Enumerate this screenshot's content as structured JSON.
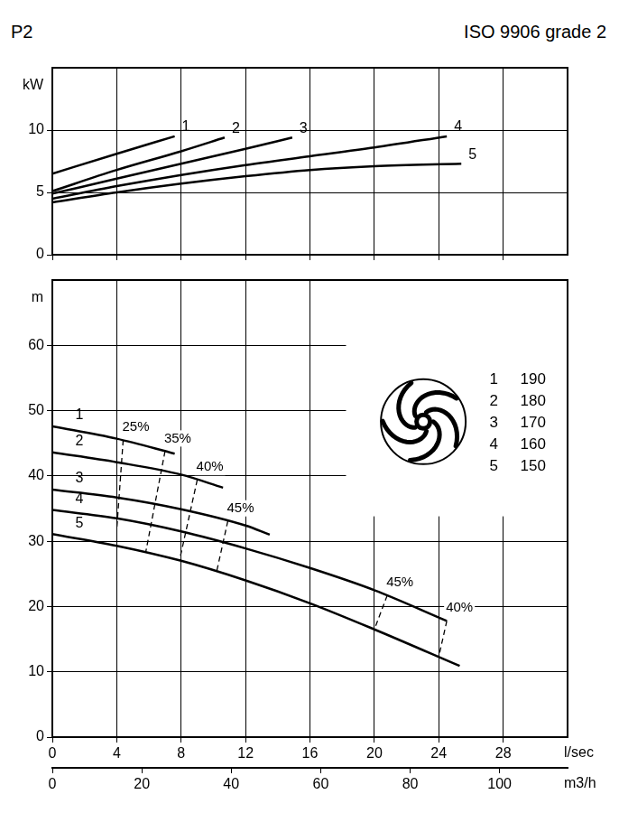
{
  "chart_data": [
    {
      "type": "line",
      "title": "P2",
      "subtitle": "ISO 9906 grade 2",
      "ylabel": "kW",
      "xlim": [
        0,
        32
      ],
      "xticks": [
        0,
        4,
        8,
        12,
        16,
        20,
        24,
        28
      ],
      "ylim": [
        0,
        15
      ],
      "yticks": [
        0,
        5,
        10
      ],
      "grid": true,
      "tick_labels": "y",
      "series": [
        {
          "name": "1",
          "color": "#000000",
          "x": [
            0,
            4,
            7.6
          ],
          "values": [
            6.5,
            8.1,
            9.5
          ]
        },
        {
          "name": "2",
          "color": "#000000",
          "x": [
            0,
            4,
            8,
            10.7
          ],
          "values": [
            5.1,
            6.8,
            8.3,
            9.4
          ]
        },
        {
          "name": "3",
          "color": "#000000",
          "x": [
            0,
            4,
            8,
            12,
            14.9
          ],
          "values": [
            4.9,
            6.1,
            7.3,
            8.5,
            9.4
          ]
        },
        {
          "name": "4",
          "color": "#000000",
          "x": [
            0,
            4,
            8,
            12,
            16,
            20,
            24.5
          ],
          "values": [
            4.5,
            5.5,
            6.4,
            7.2,
            7.9,
            8.6,
            9.5
          ]
        },
        {
          "name": "5",
          "color": "#000000",
          "x": [
            0,
            4,
            8,
            12,
            16,
            20,
            25.4
          ],
          "values": [
            4.2,
            5.0,
            5.7,
            6.3,
            6.8,
            7.1,
            7.3
          ]
        }
      ]
    },
    {
      "type": "line",
      "ylabel": "m",
      "xlabel": "l/sec",
      "x2label": "m3/h",
      "xlim": [
        0,
        32
      ],
      "xticks": [
        0,
        4,
        8,
        12,
        16,
        20,
        24,
        28
      ],
      "x2lim": [
        0,
        115.2
      ],
      "x2ticks": [
        0,
        20,
        40,
        60,
        80,
        100
      ],
      "ylim": [
        0,
        70
      ],
      "yticks": [
        0,
        10,
        20,
        30,
        40,
        50,
        60
      ],
      "grid": true,
      "series": [
        {
          "name": "1",
          "color": "#000000",
          "x": [
            0,
            4,
            7.6
          ],
          "values": [
            47.6,
            45.7,
            43.4
          ]
        },
        {
          "name": "2",
          "color": "#000000",
          "x": [
            0,
            4,
            8,
            10.6
          ],
          "values": [
            43.6,
            42.1,
            40.2,
            38.2
          ]
        },
        {
          "name": "3",
          "color": "#000000",
          "x": [
            0,
            4,
            8,
            12,
            13.5
          ],
          "values": [
            37.9,
            36.7,
            34.9,
            32.4,
            31.0
          ]
        },
        {
          "name": "4",
          "color": "#000000",
          "x": [
            0,
            4,
            8,
            12,
            16,
            20,
            24.5
          ],
          "values": [
            34.8,
            33.5,
            31.5,
            28.9,
            25.9,
            22.5,
            17.8
          ]
        },
        {
          "name": "5",
          "color": "#000000",
          "x": [
            0,
            4,
            8,
            12,
            16,
            20,
            25.3
          ],
          "values": [
            31.1,
            29.3,
            27.0,
            24.0,
            20.5,
            16.5,
            10.9
          ]
        }
      ],
      "efficiency_lines": {
        "line_style": "dashed",
        "color": "#000000",
        "lines": [
          {
            "text": "25%",
            "x": [
              4.4,
              4.0
            ],
            "values": [
              45.5,
              31.8
            ]
          },
          {
            "text": "35%",
            "x": [
              7.0,
              5.8
            ],
            "values": [
              43.8,
              28.3
            ]
          },
          {
            "text": "40%",
            "x": [
              9.0,
              7.9
            ],
            "values": [
              39.4,
              27.1
            ]
          },
          {
            "text": "45%",
            "x": [
              10.9,
              10.2
            ],
            "values": [
              33.1,
              25.3
            ]
          },
          {
            "text": "45%",
            "x": [
              20.8,
              20.0
            ],
            "values": [
              21.7,
              16.5
            ]
          },
          {
            "text": "40%",
            "x": [
              24.5,
              24.0
            ],
            "values": [
              17.8,
              12.3
            ]
          }
        ]
      },
      "impeller_diameters": {
        "curves": [
          "1",
          "2",
          "3",
          "4",
          "5"
        ],
        "diameters": [
          190,
          180,
          170,
          160,
          150
        ]
      }
    }
  ]
}
